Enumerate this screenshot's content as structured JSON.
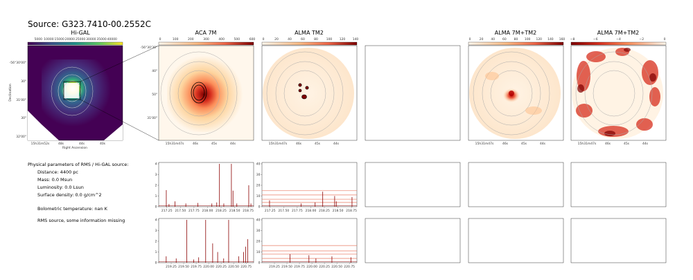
{
  "source_title": "Source: G323.7410-00.2552C",
  "panels": {
    "higal": {
      "title": "Hi-GAL",
      "cbar_ticks": [
        "5000",
        "10000",
        "15000",
        "20000",
        "25000",
        "30000",
        "35000",
        "40000"
      ],
      "ra_ticks": [
        "15h31m52s",
        "48s",
        "44s",
        "40s"
      ],
      "dec_ticks": [
        "-56°30'00\"",
        "30\"",
        "31'00\"",
        "30\"",
        "32'00\""
      ],
      "xlabel": "Right Ascension",
      "ylabel": "Declination"
    },
    "aca": {
      "title": "ACA 7M",
      "cbar_ticks": [
        "0",
        "100",
        "200",
        "300",
        "400",
        "500",
        "600"
      ],
      "ra_ticks": [
        "15h31m47s",
        "46s",
        "45s",
        "44s"
      ],
      "dec_ticks": [
        "-56°30'30\"",
        "40\"",
        "50\"",
        "31'00\""
      ]
    },
    "tm2": {
      "title": "ALMA TM2",
      "cbar_ticks": [
        "0",
        "20",
        "40",
        "60",
        "80",
        "100",
        "120",
        "140"
      ],
      "ra_ticks": [
        "15h31m47s",
        "46s",
        "45s",
        "44s"
      ]
    },
    "combo": {
      "title": "ALMA 7M+TM2",
      "cbar_ticks": [
        "0",
        "20",
        "40",
        "60",
        "80",
        "100",
        "120",
        "140",
        "160"
      ],
      "ra_ticks": [
        "15h31m47s",
        "46s",
        "45s",
        "44s"
      ]
    },
    "combo_neg": {
      "title": "ALMA 7M+TM2",
      "cbar_ticks": [
        "−8",
        "−6",
        "−4",
        "−2",
        "0"
      ],
      "ra_ticks": [
        "15h31m47s",
        "46s",
        "45s",
        "44s"
      ]
    }
  },
  "info": {
    "header": "Physical parameters of RMS / Hi-GAL source:",
    "distance": "Distance: 4400 pc",
    "mass": "Mass: 0.0 Msun",
    "luminosity": "Luminosity: 0.0 Lsun",
    "surface_density": "Surface density: 0.0 g/cm^2",
    "bolometric": "Bolometric temperature: nan K",
    "note": "RMS source, some information missing"
  },
  "chart_data": [
    {
      "type": "line",
      "panel": "ACA spectrum, upper band",
      "x_ticks": [
        "217.25",
        "217.50",
        "217.75",
        "218.00",
        "218.25",
        "218.50",
        "218.75"
      ],
      "y_ticks": [
        "0",
        "1",
        "2",
        "3",
        "4"
      ],
      "xlim": [
        217.1,
        218.85
      ],
      "ylim": [
        0,
        4
      ],
      "peaks": [
        {
          "x": 217.24,
          "y": 1.55
        },
        {
          "x": 217.29,
          "y": 0.25
        },
        {
          "x": 217.4,
          "y": 0.5
        },
        {
          "x": 217.6,
          "y": 0.3
        },
        {
          "x": 217.82,
          "y": 0.35
        },
        {
          "x": 218.08,
          "y": 0.3
        },
        {
          "x": 218.17,
          "y": 0.4
        },
        {
          "x": 218.22,
          "y": 4.2
        },
        {
          "x": 218.3,
          "y": 0.3
        },
        {
          "x": 218.44,
          "y": 4.0
        },
        {
          "x": 218.47,
          "y": 1.5
        },
        {
          "x": 218.54,
          "y": 0.3
        },
        {
          "x": 218.76,
          "y": 2.0
        },
        {
          "x": 218.8,
          "y": 0.3
        }
      ]
    },
    {
      "type": "line",
      "panel": "TM2 spectrum, upper band",
      "x_ticks": [
        "217.25",
        "217.50",
        "217.75",
        "218.00",
        "218.25",
        "218.50",
        "218.75"
      ],
      "y_ticks": [
        "0",
        "10",
        "20",
        "30",
        "40"
      ],
      "xlim": [
        217.1,
        218.85
      ],
      "ylim": [
        0,
        40
      ],
      "hlines": [
        15,
        11,
        7,
        4
      ],
      "peaks": [
        {
          "x": 217.24,
          "y": 6
        },
        {
          "x": 217.82,
          "y": 3
        },
        {
          "x": 218.08,
          "y": 4
        },
        {
          "x": 218.22,
          "y": 14
        },
        {
          "x": 218.44,
          "y": 10
        },
        {
          "x": 218.47,
          "y": 5
        },
        {
          "x": 218.76,
          "y": 9
        }
      ]
    },
    {
      "type": "line",
      "panel": "ACA spectrum, lower band",
      "x_ticks": [
        "219.25",
        "219.50",
        "219.75",
        "220.00",
        "220.25",
        "220.50",
        "220.75"
      ],
      "y_ticks": [
        "0",
        "1",
        "2",
        "3",
        "4"
      ],
      "xlim": [
        219.0,
        220.9
      ],
      "ylim": [
        0,
        4
      ],
      "peaks": [
        {
          "x": 219.15,
          "y": 0.6
        },
        {
          "x": 219.35,
          "y": 0.4
        },
        {
          "x": 219.56,
          "y": 4.1
        },
        {
          "x": 219.7,
          "y": 0.3
        },
        {
          "x": 219.8,
          "y": 0.5
        },
        {
          "x": 219.94,
          "y": 4.0
        },
        {
          "x": 220.08,
          "y": 1.8
        },
        {
          "x": 220.18,
          "y": 1.0
        },
        {
          "x": 220.3,
          "y": 0.4
        },
        {
          "x": 220.4,
          "y": 4.0
        },
        {
          "x": 220.6,
          "y": 0.6
        },
        {
          "x": 220.7,
          "y": 1.0
        },
        {
          "x": 220.74,
          "y": 1.5
        },
        {
          "x": 220.78,
          "y": 2.2
        }
      ]
    },
    {
      "type": "line",
      "panel": "TM2 spectrum, lower band",
      "x_ticks": [
        "219.25",
        "219.50",
        "219.75",
        "220.00",
        "220.25",
        "220.50",
        "220.75"
      ],
      "y_ticks": [
        "0",
        "10",
        "20",
        "30",
        "40"
      ],
      "xlim": [
        219.0,
        220.9
      ],
      "ylim": [
        0,
        40
      ],
      "hlines": [
        16,
        11,
        8,
        4
      ],
      "peaks": [
        {
          "x": 219.56,
          "y": 8
        },
        {
          "x": 219.94,
          "y": 7
        },
        {
          "x": 220.08,
          "y": 4
        },
        {
          "x": 220.4,
          "y": 6
        },
        {
          "x": 220.78,
          "y": 5
        }
      ]
    }
  ]
}
